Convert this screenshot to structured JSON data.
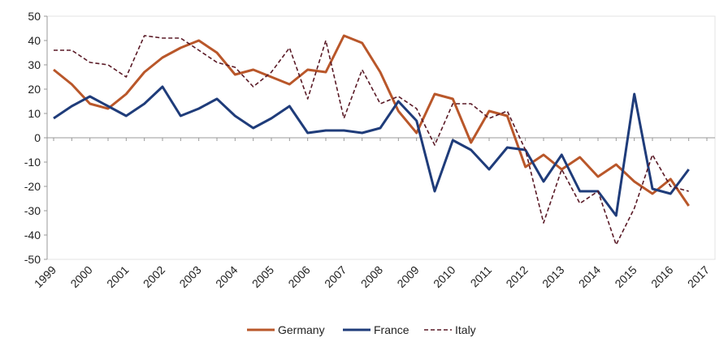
{
  "chart_data": {
    "type": "line",
    "categories": [
      "1999",
      null,
      "2000",
      null,
      "2001",
      null,
      "2002",
      null,
      "2003",
      null,
      "2004",
      null,
      "2005",
      null,
      "2006",
      null,
      "2007",
      null,
      "2008",
      null,
      "2009",
      null,
      "2010",
      null,
      "2011",
      null,
      "2012",
      null,
      "2013",
      null,
      "2014",
      null,
      "2015",
      null,
      "2016",
      null,
      "2017"
    ],
    "series": [
      {
        "name": "Germany",
        "color": "#b9572a",
        "dash": false,
        "values": [
          28,
          22,
          14,
          12,
          18,
          27,
          33,
          37,
          40,
          35,
          26,
          28,
          25,
          22,
          28,
          27,
          42,
          39,
          27,
          11,
          2,
          18,
          16,
          -2,
          11,
          9,
          -12,
          -7,
          -13,
          -8,
          -16,
          -11,
          -18,
          -23,
          -17,
          -28,
          null
        ]
      },
      {
        "name": "France",
        "color": "#1f3c7a",
        "dash": false,
        "values": [
          8,
          13,
          17,
          13,
          9,
          14,
          21,
          9,
          12,
          16,
          9,
          4,
          8,
          13,
          2,
          3,
          3,
          2,
          4,
          15,
          7,
          -22,
          -1,
          -5,
          -13,
          -4,
          -5,
          -18,
          -7,
          -22,
          -22,
          -32,
          18,
          -21,
          -23,
          -13,
          null
        ]
      },
      {
        "name": "Italy",
        "color": "#5a1a26",
        "dash": true,
        "values": [
          36,
          36,
          31,
          30,
          25,
          42,
          41,
          41,
          36,
          31,
          29,
          21,
          27,
          37,
          16,
          40,
          8,
          28,
          14,
          17,
          12,
          -3,
          14,
          14,
          8,
          11,
          -5,
          -35,
          -13,
          -27,
          -22,
          -44,
          -29,
          -7,
          -20,
          -22,
          null
        ]
      }
    ],
    "ylim": [
      -50,
      50
    ],
    "yticks": [
      -50,
      -40,
      -30,
      -20,
      -10,
      0,
      10,
      20,
      30,
      40,
      50
    ],
    "legend": "bottom"
  }
}
